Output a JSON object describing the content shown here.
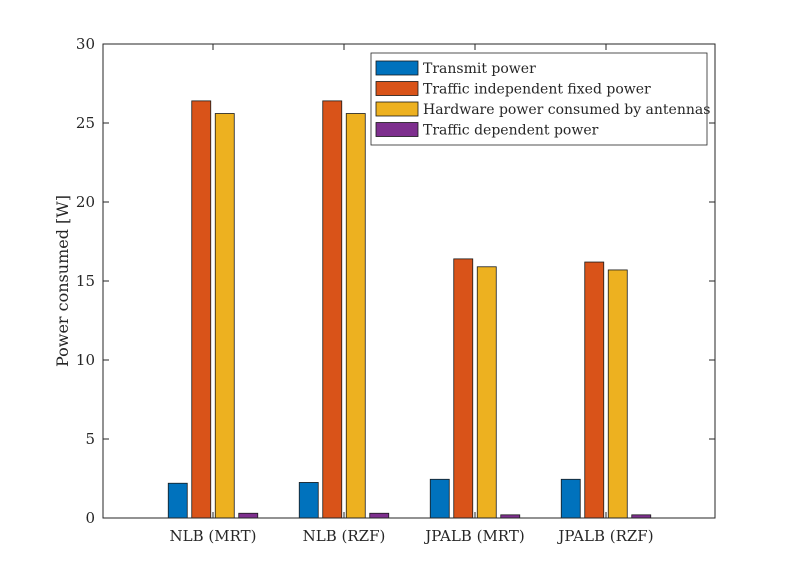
{
  "chart_data": {
    "type": "bar",
    "title": "",
    "xlabel": "",
    "ylabel": "Power consumed [W]",
    "ylim": [
      0,
      30
    ],
    "yticks": [
      0,
      5,
      10,
      15,
      20,
      25,
      30
    ],
    "grid": false,
    "legend_position": "top-right",
    "categories": [
      "NLB (MRT)",
      "NLB (RZF)",
      "JPALB (MRT)",
      "JPALB (RZF)"
    ],
    "series": [
      {
        "name": "Transmit power",
        "color": "#0072BD",
        "values": [
          2.2,
          2.25,
          2.45,
          2.45
        ]
      },
      {
        "name": "Traffic independent fixed power",
        "color": "#D95319",
        "values": [
          26.4,
          26.4,
          16.4,
          16.2
        ]
      },
      {
        "name": "Hardware power consumed by antennas",
        "color": "#EDB120",
        "values": [
          25.6,
          25.6,
          15.9,
          15.7
        ]
      },
      {
        "name": "Traffic dependent power",
        "color": "#7E2F8E",
        "values": [
          0.3,
          0.3,
          0.2,
          0.2
        ]
      }
    ]
  }
}
